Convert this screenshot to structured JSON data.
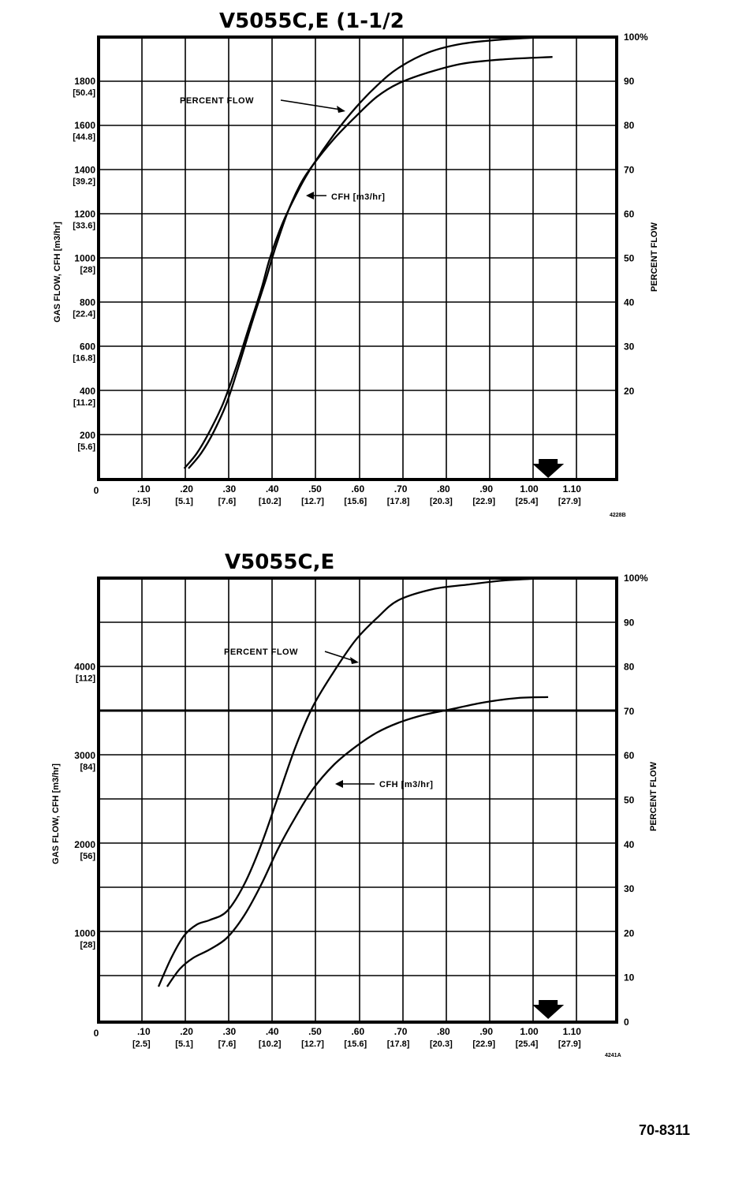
{
  "page_number": "70-8311",
  "chart_data": [
    {
      "type": "line",
      "title": "V5055C,E (1-1/2",
      "figure_code": "4228B",
      "ylabel": "GAS FLOW, CFH [m3/hr]",
      "y2label": "PERCENT FLOW",
      "ylim": [
        0,
        2000
      ],
      "y2lim": [
        0,
        100
      ],
      "xlim": [
        0,
        1.2
      ],
      "grid": true,
      "origin_label": "0",
      "x_ticks": [
        {
          "v": 0.1,
          "label": ".10",
          "sub": "[2.5]"
        },
        {
          "v": 0.2,
          "label": ".20",
          "sub": "[5.1]"
        },
        {
          "v": 0.3,
          "label": ".30",
          "sub": "[7.6]"
        },
        {
          "v": 0.4,
          "label": ".40",
          "sub": "[10.2]"
        },
        {
          "v": 0.5,
          "label": ".50",
          "sub": "[12.7]"
        },
        {
          "v": 0.6,
          "label": ".60",
          "sub": "[15.6]"
        },
        {
          "v": 0.7,
          "label": ".70",
          "sub": "[17.8]"
        },
        {
          "v": 0.8,
          "label": ".80",
          "sub": "[20.3]"
        },
        {
          "v": 0.9,
          "label": ".90",
          "sub": "[22.9]"
        },
        {
          "v": 1.0,
          "label": "1.00",
          "sub": "[25.4]"
        },
        {
          "v": 1.1,
          "label": "1.10",
          "sub": "[27.9]"
        }
      ],
      "y_ticks": [
        {
          "v": 200,
          "label": "200",
          "sub": "[5.6]"
        },
        {
          "v": 400,
          "label": "400",
          "sub": "[11.2]"
        },
        {
          "v": 600,
          "label": "600",
          "sub": "[16.8]"
        },
        {
          "v": 800,
          "label": "800",
          "sub": "[22.4]"
        },
        {
          "v": 1000,
          "label": "1000",
          "sub": "[28]"
        },
        {
          "v": 1200,
          "label": "1200",
          "sub": "[33.6]"
        },
        {
          "v": 1400,
          "label": "1400",
          "sub": "[39.2]"
        },
        {
          "v": 1600,
          "label": "1600",
          "sub": "[44.8]"
        },
        {
          "v": 1800,
          "label": "1800",
          "sub": "[50.4]"
        }
      ],
      "y2_ticks": [
        {
          "v": 20,
          "label": "20"
        },
        {
          "v": 30,
          "label": "30"
        },
        {
          "v": 40,
          "label": "40"
        },
        {
          "v": 50,
          "label": "50"
        },
        {
          "v": 60,
          "label": "60"
        },
        {
          "v": 70,
          "label": "70"
        },
        {
          "v": 80,
          "label": "80"
        },
        {
          "v": 90,
          "label": "90"
        },
        {
          "v": 100,
          "label": "100%"
        }
      ],
      "marker_x": 1.05,
      "series": [
        {
          "name": "PERCENT FLOW",
          "axis": "y2",
          "x": [
            0.2,
            0.23,
            0.26,
            0.29,
            0.32,
            0.35,
            0.38,
            0.4,
            0.43,
            0.47,
            0.5,
            0.55,
            0.6,
            0.65,
            0.7,
            0.77,
            0.85,
            0.95,
            1.05
          ],
          "y": [
            2.5,
            6,
            11,
            17,
            25,
            34,
            43,
            50,
            58,
            66,
            71,
            78,
            84,
            89,
            93,
            96.5,
            98.5,
            99.5,
            100
          ]
        },
        {
          "name": "CFH [m3/hr]",
          "axis": "y",
          "x": [
            0.21,
            0.24,
            0.27,
            0.3,
            0.33,
            0.36,
            0.39,
            0.41,
            0.44,
            0.47,
            0.5,
            0.55,
            0.6,
            0.65,
            0.7,
            0.77,
            0.85,
            0.95,
            1.06
          ],
          "y": [
            50,
            120,
            220,
            350,
            530,
            720,
            900,
            1030,
            1200,
            1330,
            1420,
            1540,
            1640,
            1730,
            1790,
            1840,
            1880,
            1900,
            1910
          ]
        }
      ],
      "annotations": [
        {
          "text": "PERCENT FLOW",
          "series": "PERCENT FLOW"
        },
        {
          "text": "CFH [m3/hr]",
          "series": "CFH [m3/hr]"
        }
      ]
    },
    {
      "type": "line",
      "title": "V5055C,E",
      "figure_code": "4241A",
      "ylabel": "GAS FLOW, CFH [m3/hr]",
      "y2label": "PERCENT FLOW",
      "ylim": [
        0,
        5000
      ],
      "y2lim": [
        0,
        100
      ],
      "xlim": [
        0,
        1.2
      ],
      "grid": true,
      "origin_label": "0",
      "x_ticks": [
        {
          "v": 0.1,
          "label": ".10",
          "sub": "[2.5]"
        },
        {
          "v": 0.2,
          "label": ".20",
          "sub": "[5.1]"
        },
        {
          "v": 0.3,
          "label": ".30",
          "sub": "[7.6]"
        },
        {
          "v": 0.4,
          "label": ".40",
          "sub": "[10.2]"
        },
        {
          "v": 0.5,
          "label": ".50",
          "sub": "[12.7]"
        },
        {
          "v": 0.6,
          "label": ".60",
          "sub": "[15.6]"
        },
        {
          "v": 0.7,
          "label": ".70",
          "sub": "[17.8]"
        },
        {
          "v": 0.8,
          "label": ".80",
          "sub": "[20.3]"
        },
        {
          "v": 0.9,
          "label": ".90",
          "sub": "[22.9]"
        },
        {
          "v": 1.0,
          "label": "1.00",
          "sub": "[25.4]"
        },
        {
          "v": 1.1,
          "label": "1.10",
          "sub": "[27.9]"
        }
      ],
      "y_ticks": [
        {
          "v": 1000,
          "label": "1000",
          "sub": "[28]"
        },
        {
          "v": 2000,
          "label": "2000",
          "sub": "[56]"
        },
        {
          "v": 3000,
          "label": "3000",
          "sub": "[84]"
        },
        {
          "v": 4000,
          "label": "4000",
          "sub": "[112]"
        }
      ],
      "y2_ticks": [
        {
          "v": 0,
          "label": "0"
        },
        {
          "v": 10,
          "label": "10"
        },
        {
          "v": 20,
          "label": "20"
        },
        {
          "v": 30,
          "label": "30"
        },
        {
          "v": 40,
          "label": "40"
        },
        {
          "v": 50,
          "label": "50"
        },
        {
          "v": 60,
          "label": "60"
        },
        {
          "v": 70,
          "label": "70"
        },
        {
          "v": 80,
          "label": "80"
        },
        {
          "v": 90,
          "label": "90"
        },
        {
          "v": 100,
          "label": "100%"
        }
      ],
      "marker_x": 1.05,
      "series": [
        {
          "name": "PERCENT FLOW",
          "axis": "y2",
          "x": [
            0.14,
            0.17,
            0.2,
            0.23,
            0.26,
            0.3,
            0.34,
            0.38,
            0.42,
            0.46,
            0.5,
            0.55,
            0.6,
            0.65,
            0.7,
            0.78,
            0.86,
            0.95,
            1.05
          ],
          "y": [
            8,
            14.5,
            19.5,
            22,
            23,
            25,
            31,
            40,
            51,
            62,
            71,
            79,
            86,
            91,
            95,
            97.5,
            98.5,
            99.5,
            100
          ]
        },
        {
          "name": "CFH [m3/hr]",
          "axis": "y",
          "x": [
            0.16,
            0.19,
            0.22,
            0.26,
            0.3,
            0.34,
            0.38,
            0.42,
            0.46,
            0.5,
            0.55,
            0.6,
            0.65,
            0.7,
            0.76,
            0.82,
            0.9,
            0.98,
            1.05
          ],
          "y": [
            400,
            600,
            720,
            820,
            950,
            1200,
            1550,
            1960,
            2310,
            2620,
            2900,
            3100,
            3260,
            3370,
            3460,
            3520,
            3600,
            3650,
            3660
          ]
        }
      ],
      "annotations": [
        {
          "text": "PERCENT FLOW",
          "series": "PERCENT FLOW"
        },
        {
          "text": "CFH [m3/hr]",
          "series": "CFH [m3/hr]"
        }
      ]
    }
  ]
}
